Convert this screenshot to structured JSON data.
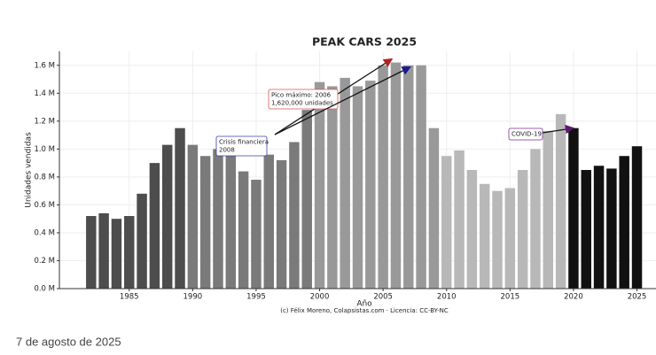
{
  "chart_data": {
    "type": "bar",
    "title": "PEAK CARS 2025",
    "x_label": "Año",
    "y_label": "Unidades vendidas",
    "credit": "(c) Félix Moreno, Colapsistas.com · Licencia: CC-BY-NC",
    "x": [
      1982,
      1983,
      1984,
      1985,
      1986,
      1987,
      1988,
      1989,
      1990,
      1991,
      1992,
      1993,
      1994,
      1995,
      1996,
      1997,
      1998,
      1999,
      2000,
      2001,
      2002,
      2003,
      2004,
      2005,
      2006,
      2007,
      2008,
      2009,
      2010,
      2011,
      2012,
      2013,
      2014,
      2015,
      2016,
      2017,
      2018,
      2019,
      2020,
      2021,
      2022,
      2023,
      2024,
      2025
    ],
    "values": [
      520000,
      540000,
      500000,
      520000,
      680000,
      900000,
      1030000,
      1150000,
      1030000,
      950000,
      1000000,
      1000000,
      840000,
      780000,
      960000,
      920000,
      1050000,
      1280000,
      1480000,
      1450000,
      1510000,
      1450000,
      1490000,
      1600000,
      1620000,
      1600000,
      1600000,
      1150000,
      950000,
      990000,
      850000,
      750000,
      700000,
      720000,
      850000,
      1000000,
      1130000,
      1250000,
      1150000,
      850000,
      880000,
      860000,
      950000,
      1020000
    ],
    "colors": [
      "#4d4d4d",
      "#4d4d4d",
      "#4d4d4d",
      "#4d4d4d",
      "#4d4d4d",
      "#4d4d4d",
      "#4d4d4d",
      "#4d4d4d",
      "#7a7a7a",
      "#7a7a7a",
      "#7a7a7a",
      "#7a7a7a",
      "#7a7a7a",
      "#7a7a7a",
      "#7a7a7a",
      "#7a7a7a",
      "#7a7a7a",
      "#7a7a7a",
      "#999999",
      "#999999",
      "#999999",
      "#999999",
      "#999999",
      "#999999",
      "#999999",
      "#999999",
      "#999999",
      "#999999",
      "#b8b8b8",
      "#b8b8b8",
      "#b8b8b8",
      "#b8b8b8",
      "#b8b8b8",
      "#b8b8b8",
      "#b8b8b8",
      "#b8b8b8",
      "#b8b8b8",
      "#b8b8b8",
      "#111111",
      "#111111",
      "#111111",
      "#111111",
      "#111111",
      "#111111"
    ],
    "xlim": [
      1979.5,
      2026.5
    ],
    "xticks": [
      1985,
      1990,
      1995,
      2000,
      2005,
      2010,
      2015,
      2020,
      2025
    ],
    "ylim": [
      0,
      1700000
    ],
    "yticks": [
      {
        "value": 0,
        "label": "0.0 M"
      },
      {
        "value": 200000,
        "label": "0.2 M"
      },
      {
        "value": 400000,
        "label": "0.4 M"
      },
      {
        "value": 600000,
        "label": "0.6 M"
      },
      {
        "value": 800000,
        "label": "0.8 M"
      },
      {
        "value": 1000000,
        "label": "1.0 M"
      },
      {
        "value": 1200000,
        "label": "1.2 M"
      },
      {
        "value": 1400000,
        "label": "1.4 M"
      },
      {
        "value": 1600000,
        "label": "1.6 M"
      }
    ],
    "grid": true,
    "annotations": [
      {
        "lines": [
          "Pico máximo: 2006",
          "1,620,000 unidades"
        ],
        "color": "#d9534f"
      },
      {
        "lines": [
          "Crisis financiera",
          "2008"
        ],
        "color": "#3b3bb3"
      },
      {
        "lines": [
          "COVID-19"
        ],
        "color": "#7b2d8e"
      }
    ]
  },
  "date": "7 de agosto de 2025"
}
